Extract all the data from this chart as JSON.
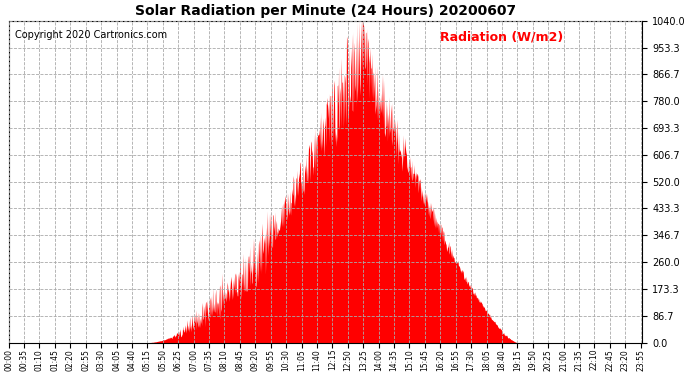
{
  "title": "Solar Radiation per Minute (24 Hours) 20200607",
  "copyright_text": "Copyright 2020 Cartronics.com",
  "ylabel_text": "Radiation (W/m2)",
  "ylabel_color": "#ff0000",
  "background_color": "#ffffff",
  "fill_color": "#ff0000",
  "grid_color": "#aaaaaa",
  "grid_style": "--",
  "ymin": 0.0,
  "ymax": 1040.0,
  "yticks": [
    0.0,
    86.7,
    173.3,
    260.0,
    346.7,
    433.3,
    520.0,
    606.7,
    693.3,
    780.0,
    866.7,
    953.3,
    1040.0
  ],
  "total_minutes": 1440,
  "tick_step_minutes": 35,
  "sunrise_minute": 315,
  "sunset_minute": 1155,
  "peak_minute": 805,
  "seed": 7
}
